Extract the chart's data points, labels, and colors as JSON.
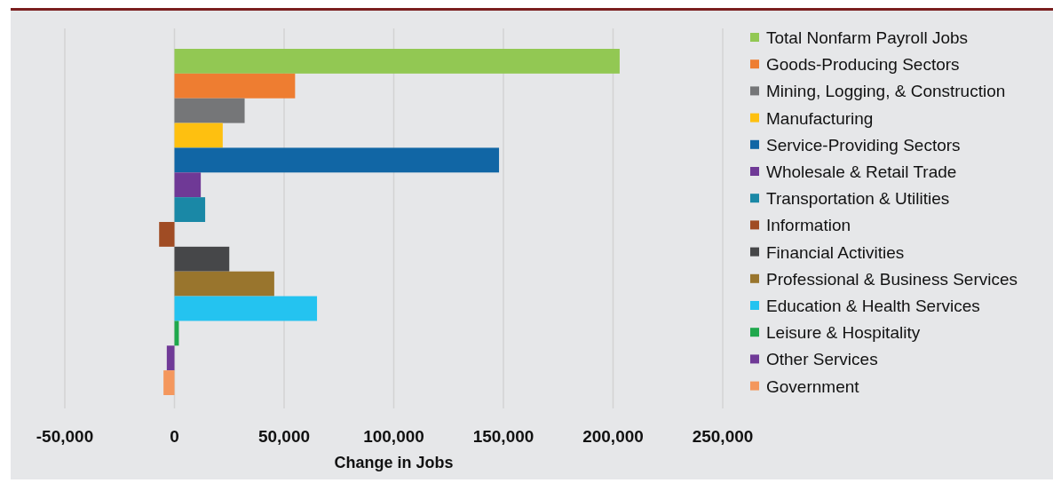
{
  "chart_data": {
    "type": "bar",
    "orientation": "horizontal",
    "xlabel": "Change in Jobs",
    "categories": [
      null
    ],
    "series": [
      {
        "name": "Total Nonfarm Payroll Jobs",
        "color": "#92c853",
        "values": [
          203000
        ]
      },
      {
        "name": "Goods-Producing Sectors",
        "color": "#ee7d31",
        "values": [
          55000
        ]
      },
      {
        "name": "Mining, Logging, & Construction",
        "color": "#757678",
        "values": [
          32000
        ]
      },
      {
        "name": "Manufacturing",
        "color": "#fec010",
        "values": [
          22000
        ]
      },
      {
        "name": "Service-Providing Sectors",
        "color": "#1166a5",
        "values": [
          148000
        ]
      },
      {
        "name": "Wholesale & Retail Trade",
        "color": "#6f3996",
        "values": [
          12000
        ]
      },
      {
        "name": "Transportation & Utilities",
        "color": "#1a88a6",
        "values": [
          14000
        ]
      },
      {
        "name": "Information",
        "color": "#a04c24",
        "values": [
          -7000
        ]
      },
      {
        "name": "Financial Activities",
        "color": "#464749",
        "values": [
          25000
        ]
      },
      {
        "name": "Professional & Business Services",
        "color": "#99752d",
        "values": [
          45500
        ]
      },
      {
        "name": "Education & Health Services",
        "color": "#24c3f0",
        "values": [
          65000
        ]
      },
      {
        "name": "Leisure & Hospitality",
        "color": "#1fa84c",
        "values": [
          2000
        ]
      },
      {
        "name": "Other Services",
        "color": "#703a97",
        "values": [
          -3500
        ]
      },
      {
        "name": "Government",
        "color": "#f4975d",
        "values": [
          -5000
        ]
      }
    ],
    "xlim": [
      -50000,
      250000
    ],
    "xticks": [
      {
        "value": -50000,
        "label": "-50,000"
      },
      0,
      {
        "value": 50000,
        "label": "50,000"
      },
      {
        "value": 100000,
        "label": "100,000"
      },
      {
        "value": 150000,
        "label": "150,000"
      },
      {
        "value": 200000,
        "label": "200,000"
      },
      {
        "value": 250000,
        "label": "250,000"
      }
    ],
    "grid": "x",
    "legend": "right",
    "tick_labels": "x"
  }
}
